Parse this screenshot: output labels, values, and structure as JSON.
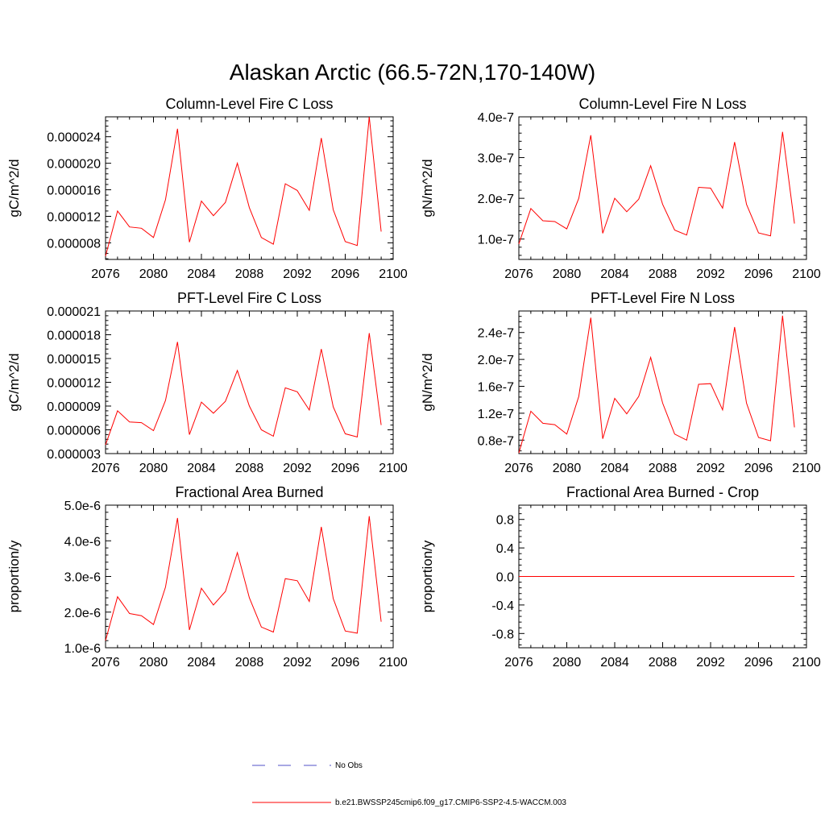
{
  "figure": {
    "title": "Alaskan Arctic (66.5-72N,170-140W)"
  },
  "colors": {
    "series_line": "#ff0000",
    "obs_line": "#5050c8",
    "frame": "#000000"
  },
  "legend": {
    "entries": [
      {
        "label": "No Obs",
        "style": "dashed",
        "color": "#5050c8"
      },
      {
        "label": "b.e21.BWSSP245cmip6.f09_g17.CMIP6-SSP2-4.5-WACCM.003",
        "style": "solid",
        "color": "#ff0000"
      }
    ]
  },
  "chart_data": [
    {
      "type": "line",
      "title": "Column-Level Fire C Loss",
      "xlabel": "",
      "ylabel": "gC/m^2/d",
      "xlim": [
        2076,
        2100
      ],
      "ylim": [
        5.5e-06,
        2.7e-05
      ],
      "xticks": [
        2076,
        2080,
        2084,
        2088,
        2092,
        2096,
        2100
      ],
      "yticks": [
        8e-06,
        1.2e-05,
        1.6e-05,
        2e-05,
        2.4e-05
      ],
      "ytick_labels": [
        "0.000008",
        "0.000012",
        "0.000016",
        "0.000020",
        "0.000024"
      ],
      "grid": false,
      "x": [
        2076,
        2077,
        2078,
        2079,
        2080,
        2081,
        2082,
        2083,
        2084,
        2085,
        2086,
        2087,
        2088,
        2089,
        2090,
        2091,
        2092,
        2093,
        2094,
        2095,
        2096,
        2097,
        2098,
        2099
      ],
      "series": [
        {
          "values": [
            6e-06,
            1.28e-05,
            1.04e-05,
            1.02e-05,
            8.8e-06,
            1.45e-05,
            2.52e-05,
            8.1e-06,
            1.43e-05,
            1.21e-05,
            1.41e-05,
            2e-05,
            1.33e-05,
            8.8e-06,
            7.8e-06,
            1.69e-05,
            1.59e-05,
            1.29e-05,
            2.38e-05,
            1.3e-05,
            8.2e-06,
            7.6e-06,
            2.7e-05,
            9.7e-06
          ]
        }
      ]
    },
    {
      "type": "line",
      "title": "Column-Level Fire N Loss",
      "xlabel": "",
      "ylabel": "gN/m^2/d",
      "xlim": [
        2076,
        2100
      ],
      "ylim": [
        5e-08,
        4e-07
      ],
      "xticks": [
        2076,
        2080,
        2084,
        2088,
        2092,
        2096,
        2100
      ],
      "yticks": [
        1e-07,
        2e-07,
        3e-07,
        4e-07
      ],
      "ytick_labels": [
        "1.0e-7",
        "2.0e-7",
        "3.0e-7",
        "4.0e-7"
      ],
      "grid": false,
      "x": [
        2076,
        2077,
        2078,
        2079,
        2080,
        2081,
        2082,
        2083,
        2084,
        2085,
        2086,
        2087,
        2088,
        2089,
        2090,
        2091,
        2092,
        2093,
        2094,
        2095,
        2096,
        2097,
        2098,
        2099
      ],
      "series": [
        {
          "values": [
            8.8e-08,
            1.75e-07,
            1.45e-07,
            1.43e-07,
            1.25e-07,
            2e-07,
            3.55e-07,
            1.14e-07,
            2e-07,
            1.67e-07,
            1.98e-07,
            2.8e-07,
            1.85e-07,
            1.22e-07,
            1.1e-07,
            2.27e-07,
            2.25e-07,
            1.76e-07,
            3.38e-07,
            1.85e-07,
            1.15e-07,
            1.08e-07,
            3.63e-07,
            1.38e-07
          ]
        }
      ]
    },
    {
      "type": "line",
      "title": "PFT-Level Fire C Loss",
      "xlabel": "",
      "ylabel": "gC/m^2/d",
      "xlim": [
        2076,
        2100
      ],
      "ylim": [
        3e-06,
        2.1e-05
      ],
      "xticks": [
        2076,
        2080,
        2084,
        2088,
        2092,
        2096,
        2100
      ],
      "yticks": [
        3e-06,
        6e-06,
        9e-06,
        1.2e-05,
        1.5e-05,
        1.8e-05,
        2.1e-05
      ],
      "ytick_labels": [
        "0.000003",
        "0.000006",
        "0.000009",
        "0.000012",
        "0.000015",
        "0.000018",
        "0.000021"
      ],
      "grid": false,
      "x": [
        2076,
        2077,
        2078,
        2079,
        2080,
        2081,
        2082,
        2083,
        2084,
        2085,
        2086,
        2087,
        2088,
        2089,
        2090,
        2091,
        2092,
        2093,
        2094,
        2095,
        2096,
        2097,
        2098,
        2099
      ],
      "series": [
        {
          "values": [
            4.1e-06,
            8.4e-06,
            7e-06,
            6.9e-06,
            5.9e-06,
            9.7e-06,
            1.71e-05,
            5.4e-06,
            9.5e-06,
            8.1e-06,
            9.6e-06,
            1.35e-05,
            9e-06,
            6e-06,
            5.2e-06,
            1.13e-05,
            1.08e-05,
            8.5e-06,
            1.62e-05,
            8.9e-06,
            5.5e-06,
            5.1e-06,
            1.82e-05,
            6.6e-06
          ]
        }
      ]
    },
    {
      "type": "line",
      "title": "PFT-Level Fire N Loss",
      "xlabel": "",
      "ylabel": "gN/m^2/d",
      "xlim": [
        2076,
        2100
      ],
      "ylim": [
        6e-08,
        2.72e-07
      ],
      "xticks": [
        2076,
        2080,
        2084,
        2088,
        2092,
        2096,
        2100
      ],
      "yticks": [
        8e-08,
        1.2e-07,
        1.6e-07,
        2e-07,
        2.4e-07
      ],
      "ytick_labels": [
        "0.8e-7",
        "1.2e-7",
        "1.6e-7",
        "2.0e-7",
        "2.4e-7"
      ],
      "grid": false,
      "x": [
        2076,
        2077,
        2078,
        2079,
        2080,
        2081,
        2082,
        2083,
        2084,
        2085,
        2086,
        2087,
        2088,
        2089,
        2090,
        2091,
        2092,
        2093,
        2094,
        2095,
        2096,
        2097,
        2098,
        2099
      ],
      "series": [
        {
          "values": [
            6.1e-08,
            1.23e-07,
            1.05e-07,
            1.03e-07,
            8.9e-08,
            1.45e-07,
            2.62e-07,
            8.2e-08,
            1.42e-07,
            1.19e-07,
            1.45e-07,
            2.03e-07,
            1.35e-07,
            8.9e-08,
            8e-08,
            1.63e-07,
            1.64e-07,
            1.25e-07,
            2.48e-07,
            1.35e-07,
            8.4e-08,
            7.9e-08,
            2.65e-07,
            9.9e-08
          ]
        }
      ]
    },
    {
      "type": "line",
      "title": "Fractional Area Burned",
      "xlabel": "",
      "ylabel": "proportion/y",
      "xlim": [
        2076,
        2100
      ],
      "ylim": [
        1e-06,
        5e-06
      ],
      "xticks": [
        2076,
        2080,
        2084,
        2088,
        2092,
        2096,
        2100
      ],
      "yticks": [
        1e-06,
        2e-06,
        3e-06,
        4e-06,
        5e-06
      ],
      "ytick_labels": [
        "1.0e-6",
        "2.0e-6",
        "3.0e-6",
        "4.0e-6",
        "5.0e-6"
      ],
      "grid": false,
      "x": [
        2076,
        2077,
        2078,
        2079,
        2080,
        2081,
        2082,
        2083,
        2084,
        2085,
        2086,
        2087,
        2088,
        2089,
        2090,
        2091,
        2092,
        2093,
        2094,
        2095,
        2096,
        2097,
        2098,
        2099
      ],
      "series": [
        {
          "values": [
            1.2e-06,
            2.43e-06,
            1.96e-06,
            1.9e-06,
            1.65e-06,
            2.7e-06,
            4.64e-06,
            1.5e-06,
            2.67e-06,
            2.2e-06,
            2.58e-06,
            3.67e-06,
            2.4e-06,
            1.58e-06,
            1.44e-06,
            2.94e-06,
            2.88e-06,
            2.3e-06,
            4.39e-06,
            2.38e-06,
            1.47e-06,
            1.41e-06,
            4.69e-06,
            1.73e-06
          ]
        }
      ]
    },
    {
      "type": "line",
      "title": "Fractional Area Burned - Crop",
      "xlabel": "",
      "ylabel": "proportion/y",
      "xlim": [
        2076,
        2100
      ],
      "ylim": [
        -1.0,
        1.0
      ],
      "xticks": [
        2076,
        2080,
        2084,
        2088,
        2092,
        2096,
        2100
      ],
      "yticks": [
        -0.8,
        -0.4,
        0.0,
        0.4,
        0.8
      ],
      "ytick_labels": [
        "-0.8",
        "-0.4",
        "0.0",
        "0.4",
        "0.8"
      ],
      "grid": false,
      "x": [
        2076,
        2077,
        2078,
        2079,
        2080,
        2081,
        2082,
        2083,
        2084,
        2085,
        2086,
        2087,
        2088,
        2089,
        2090,
        2091,
        2092,
        2093,
        2094,
        2095,
        2096,
        2097,
        2098,
        2099
      ],
      "series": [
        {
          "values": [
            0,
            0,
            0,
            0,
            0,
            0,
            0,
            0,
            0,
            0,
            0,
            0,
            0,
            0,
            0,
            0,
            0,
            0,
            0,
            0,
            0,
            0,
            0,
            0
          ]
        }
      ]
    }
  ]
}
